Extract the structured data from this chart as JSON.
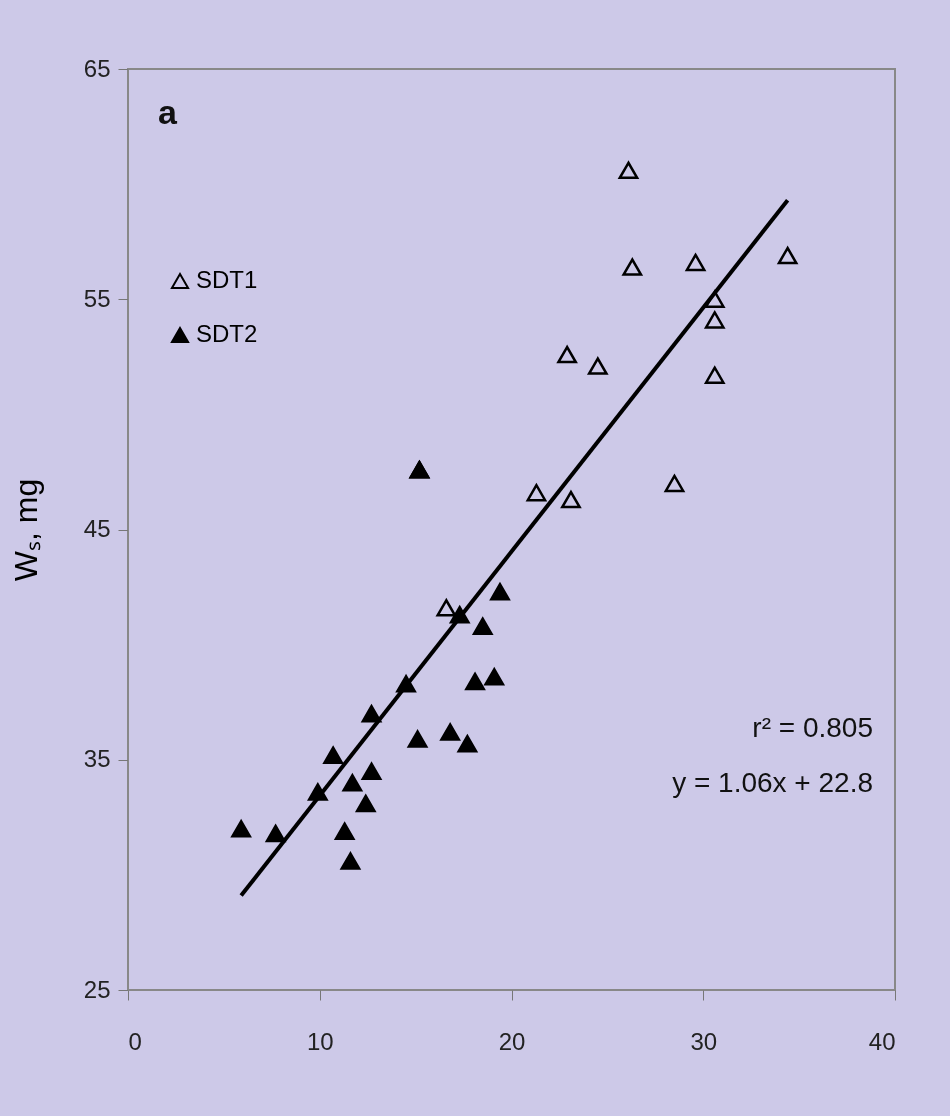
{
  "chart_data": {
    "type": "scatter",
    "ylabel": "Wₛ, mg",
    "xlim": [
      0,
      40
    ],
    "ylim": [
      25,
      65
    ],
    "xticks": [
      0,
      10,
      20,
      30,
      40
    ],
    "yticks": [
      25,
      35,
      45,
      55,
      65
    ],
    "grid": false,
    "legend": "top left",
    "marker": "triangle",
    "annotations": [
      "a",
      "r² = 0.805",
      "y = 1.06x + 22.8"
    ],
    "series": [
      {
        "name": "SDT1",
        "color": "#000000",
        "x": [
          26.1,
          26.3,
          29.6,
          34.4,
          30.6,
          30.6,
          30.6,
          22.9,
          24.5,
          28.5,
          15.2,
          21.3,
          23.1,
          16.6
        ],
        "values": [
          60.6,
          56.4,
          56.6,
          56.9,
          55.0,
          54.1,
          51.7,
          52.6,
          52.1,
          47.0,
          47.6,
          46.6,
          46.3,
          41.6
        ]
      },
      {
        "name": "SDT2",
        "color": "#000000",
        "x": [
          15.2,
          17.3,
          19.4,
          18.5,
          18.1,
          19.1,
          14.5,
          12.7,
          15.1,
          16.8,
          17.7,
          10.7,
          12.7,
          11.7,
          9.9,
          12.4,
          5.9,
          7.7,
          11.3,
          11.6
        ],
        "values": [
          47.6,
          41.3,
          42.3,
          40.8,
          38.4,
          38.6,
          38.3,
          37.0,
          35.9,
          36.2,
          35.7,
          35.2,
          34.5,
          34.0,
          33.6,
          33.1,
          32.0,
          31.8,
          31.9,
          30.6
        ]
      },
      {
        "type": "line",
        "marker": "none",
        "color": "#000000",
        "x": [
          5.9,
          34.4
        ],
        "values": [
          29.1,
          59.3
        ]
      }
    ]
  }
}
